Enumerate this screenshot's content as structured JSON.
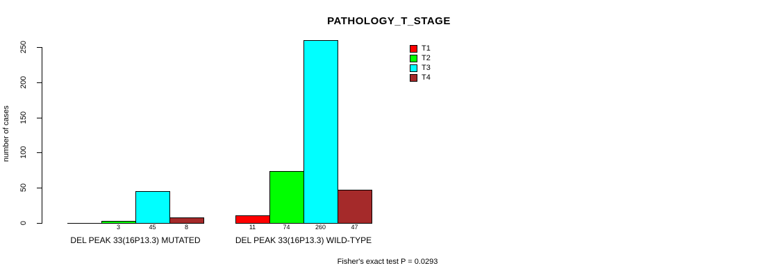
{
  "title": "PATHOLOGY_T_STAGE",
  "footer": "Fisher's exact test P = 0.0293",
  "y_axis": {
    "label": "number of cases",
    "ticks": [
      0,
      50,
      100,
      150,
      200,
      250
    ]
  },
  "legend": {
    "position": "top-right",
    "entries": [
      {
        "label": "T1",
        "color": "#ff0000"
      },
      {
        "label": "T2",
        "color": "#00ff00"
      },
      {
        "label": "T3",
        "color": "#00ffff"
      },
      {
        "label": "T4",
        "color": "#a52a2a"
      }
    ]
  },
  "chart_data": {
    "type": "bar",
    "title": "PATHOLOGY_T_STAGE",
    "xlabel": "",
    "ylabel": "number of cases",
    "ylim": [
      0,
      260
    ],
    "grid": false,
    "legend_position": "top-right",
    "categories": [
      "DEL PEAK 33(16P13.3) MUTATED",
      "DEL PEAK 33(16P13.3) WILD-TYPE"
    ],
    "series": [
      {
        "name": "T1",
        "color": "#ff0000",
        "values": [
          0,
          11
        ]
      },
      {
        "name": "T2",
        "color": "#00ff00",
        "values": [
          3,
          74
        ]
      },
      {
        "name": "T3",
        "color": "#00ffff",
        "values": [
          45,
          260
        ]
      },
      {
        "name": "T4",
        "color": "#a52a2a",
        "values": [
          8,
          47
        ]
      }
    ],
    "bar_value_labels": [
      [
        "",
        "3",
        "45",
        "8"
      ],
      [
        "11",
        "74",
        "260",
        "47"
      ]
    ],
    "annotation": "Fisher's exact test P = 0.0293"
  }
}
